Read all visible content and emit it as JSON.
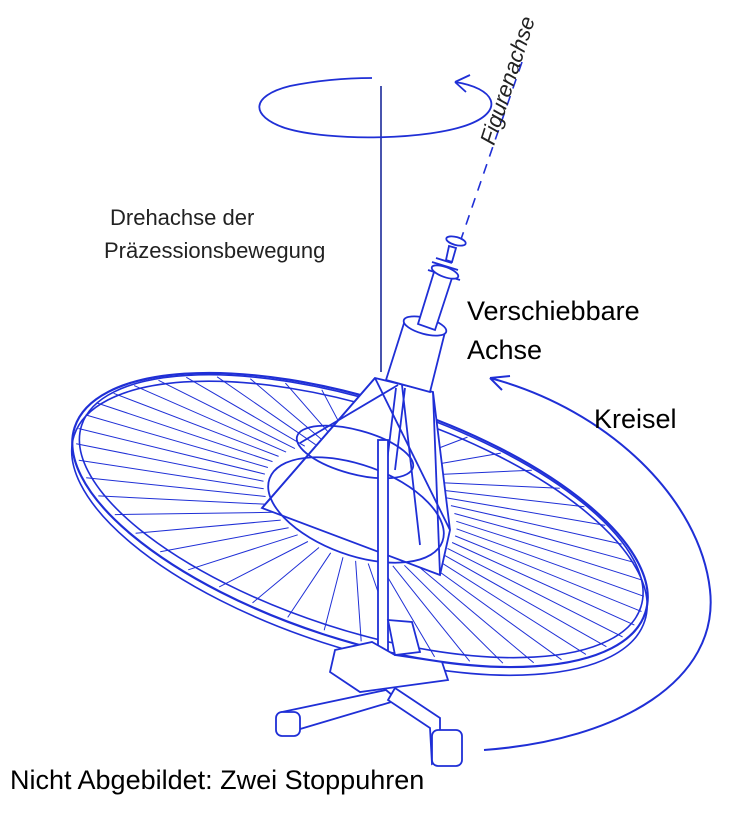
{
  "labels": {
    "figure_axis": "Figurenachse",
    "precession_axis_line1": "Drehachse der",
    "precession_axis_line2": "Präzessionsbewegung",
    "movable_axis_line1": "Verschiebbare",
    "movable_axis_line2": "Achse",
    "gyroscope": "Kreisel",
    "footer_note": "Nicht Abgebildet: Zwei Stoppuhren"
  },
  "colors": {
    "drawing": "#1f2fd6",
    "axis_line": "#1a2a9a",
    "text": "#000000"
  },
  "wheel": {
    "spoke_count": 48
  }
}
